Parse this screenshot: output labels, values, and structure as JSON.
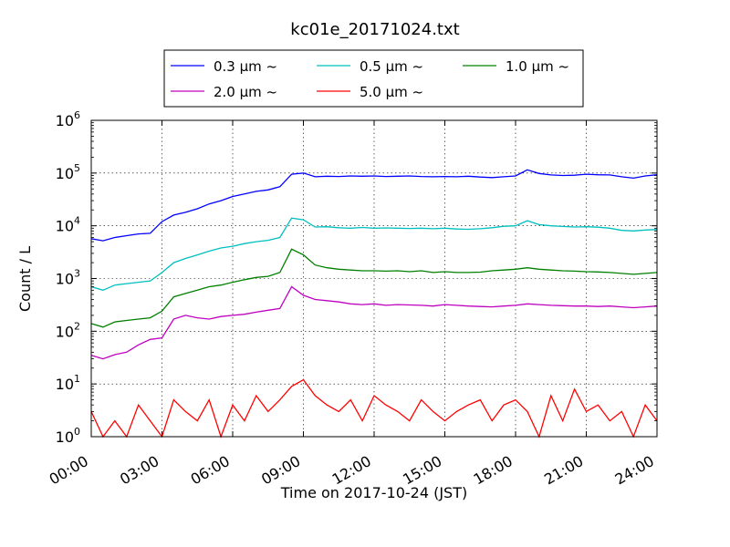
{
  "chart_data": {
    "type": "line",
    "title": "kc01e_20171024.txt",
    "xlabel": "Time on 2017-10-24 (JST)",
    "ylabel": "Count / L",
    "y_scale": "log",
    "ylim": [
      1,
      1000000
    ],
    "y_ticks": [
      {
        "value": 1,
        "base": "10",
        "exp": "0"
      },
      {
        "value": 10,
        "base": "10",
        "exp": "1"
      },
      {
        "value": 100,
        "base": "10",
        "exp": "2"
      },
      {
        "value": 1000,
        "base": "10",
        "exp": "3"
      },
      {
        "value": 10000,
        "base": "10",
        "exp": "4"
      },
      {
        "value": 100000,
        "base": "10",
        "exp": "5"
      },
      {
        "value": 1000000,
        "base": "10",
        "exp": "6"
      }
    ],
    "xlim": [
      "00:00",
      "24:00"
    ],
    "x_ticks": [
      "00:00",
      "03:00",
      "06:00",
      "09:00",
      "12:00",
      "15:00",
      "18:00",
      "21:00",
      "24:00"
    ],
    "grid": true,
    "legend_position": "top-center",
    "x": [
      "00:00",
      "00:30",
      "01:00",
      "01:30",
      "02:00",
      "02:30",
      "03:00",
      "03:30",
      "04:00",
      "04:30",
      "05:00",
      "05:30",
      "06:00",
      "06:30",
      "07:00",
      "07:30",
      "08:00",
      "08:30",
      "09:00",
      "09:30",
      "10:00",
      "10:30",
      "11:00",
      "11:30",
      "12:00",
      "12:30",
      "13:00",
      "13:30",
      "14:00",
      "14:30",
      "15:00",
      "15:30",
      "16:00",
      "16:30",
      "17:00",
      "17:30",
      "18:00",
      "18:30",
      "19:00",
      "19:30",
      "20:00",
      "20:30",
      "21:00",
      "21:30",
      "22:00",
      "22:30",
      "23:00",
      "23:30",
      "24:00"
    ],
    "series": [
      {
        "name": "0.3 μm ~",
        "color": "#0000ff",
        "values": [
          5700,
          5200,
          6000,
          6500,
          7000,
          7200,
          12000,
          16000,
          18000,
          21000,
          26000,
          30000,
          36000,
          40000,
          45000,
          48000,
          55000,
          95000,
          100000,
          85000,
          87000,
          86000,
          88000,
          87000,
          88000,
          86000,
          87000,
          88000,
          86000,
          85000,
          86000,
          85000,
          87000,
          84000,
          82000,
          85000,
          88000,
          115000,
          98000,
          92000,
          90000,
          91000,
          95000,
          93000,
          92000,
          85000,
          80000,
          88000,
          93000
        ]
      },
      {
        "name": "0.5 μm ~",
        "color": "#00bfbf",
        "values": [
          700,
          600,
          750,
          800,
          850,
          900,
          1300,
          2000,
          2400,
          2800,
          3300,
          3800,
          4100,
          4600,
          5000,
          5300,
          6000,
          14000,
          13000,
          9500,
          9600,
          9200,
          9000,
          9300,
          9000,
          9100,
          9000,
          8900,
          9000,
          8800,
          9000,
          8700,
          8600,
          8800,
          9200,
          9800,
          10000,
          12500,
          10500,
          10000,
          9700,
          9500,
          9600,
          9400,
          9000,
          8200,
          8000,
          8300,
          8500
        ]
      },
      {
        "name": "1.0 μm ~",
        "color": "#008000",
        "values": [
          140,
          120,
          150,
          160,
          170,
          180,
          240,
          450,
          520,
          600,
          700,
          750,
          850,
          950,
          1050,
          1100,
          1300,
          3600,
          2800,
          1800,
          1600,
          1500,
          1450,
          1400,
          1400,
          1380,
          1400,
          1350,
          1400,
          1300,
          1350,
          1300,
          1300,
          1320,
          1400,
          1450,
          1500,
          1600,
          1500,
          1450,
          1400,
          1380,
          1350,
          1330,
          1300,
          1250,
          1200,
          1250,
          1300
        ]
      },
      {
        "name": "2.0 μm ~",
        "color": "#bf00bf",
        "values": [
          35,
          30,
          36,
          40,
          55,
          70,
          75,
          170,
          200,
          180,
          170,
          190,
          200,
          210,
          230,
          250,
          270,
          700,
          480,
          400,
          380,
          360,
          330,
          320,
          330,
          310,
          320,
          315,
          310,
          300,
          320,
          310,
          300,
          295,
          290,
          300,
          310,
          330,
          320,
          310,
          305,
          300,
          300,
          295,
          300,
          290,
          280,
          290,
          300
        ]
      },
      {
        "name": "5.0 μm ~",
        "color": "#ff0000",
        "values": [
          3,
          1,
          2,
          1,
          4,
          2,
          1,
          5,
          3,
          2,
          5,
          1,
          4,
          2,
          6,
          3,
          5,
          9,
          12,
          6,
          4,
          3,
          5,
          2,
          6,
          4,
          3,
          2,
          5,
          3,
          2,
          3,
          4,
          5,
          2,
          4,
          5,
          3,
          1,
          6,
          2,
          8,
          3,
          4,
          2,
          3,
          1,
          4,
          2
        ]
      }
    ]
  }
}
